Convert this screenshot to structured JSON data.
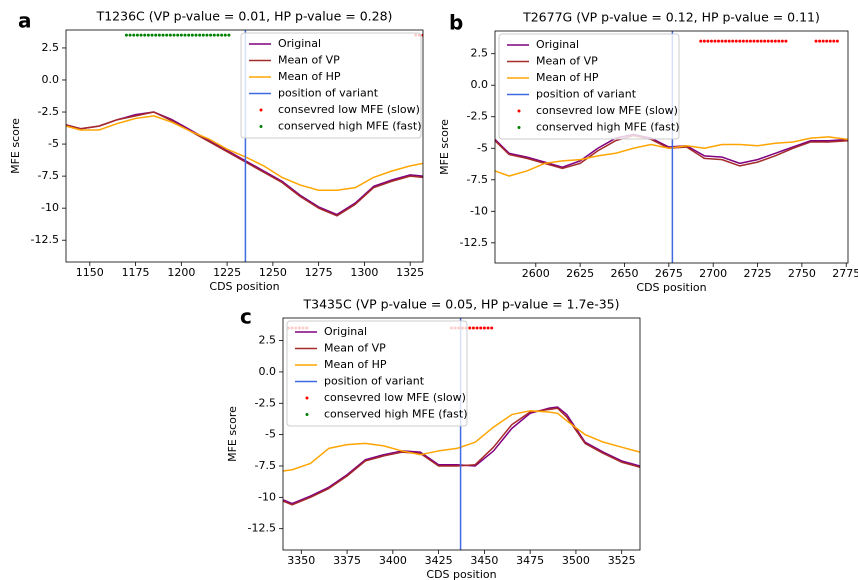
{
  "chart_data": [
    {
      "type": "line",
      "panel_label": "a",
      "title": "T1236C (VP p-value = 0.01, HP p-value = 0.28)",
      "xlabel": "CDS position",
      "ylabel": "MFE score",
      "legend": "upper right",
      "xlim": [
        1137,
        1332
      ],
      "xticks": [
        1150,
        1175,
        1200,
        1225,
        1250,
        1275,
        1300,
        1325
      ],
      "ylim": [
        -14.2,
        3.9
      ],
      "yticks": [
        -12.5,
        -10,
        -7.5,
        -5,
        -2.5,
        {
          "value": 0,
          "label": "0.0"
        },
        2.5
      ],
      "x": [
        1137,
        1145,
        1155,
        1165,
        1175,
        1185,
        1195,
        1205,
        1215,
        1225,
        1235,
        1245,
        1255,
        1265,
        1275,
        1285,
        1295,
        1305,
        1315,
        1325,
        1332
      ],
      "series": [
        {
          "name": "Original",
          "type": "line",
          "color": "#800080",
          "values": [
            -3.5,
            -3.8,
            -3.6,
            -3.1,
            -2.7,
            -2.5,
            -3.1,
            -3.9,
            -4.7,
            -5.5,
            -6.3,
            -7.1,
            -7.9,
            -9.0,
            -9.9,
            -10.5,
            -9.6,
            -8.3,
            -7.8,
            -7.4,
            -7.5
          ]
        },
        {
          "name": "Mean of VP",
          "type": "line",
          "color": "#a52a2a",
          "values": [
            -3.5,
            -3.8,
            -3.6,
            -3.1,
            -2.8,
            -2.5,
            -3.2,
            -4.0,
            -4.8,
            -5.6,
            -6.4,
            -7.2,
            -8.0,
            -9.1,
            -10.0,
            -10.6,
            -9.7,
            -8.4,
            -7.9,
            -7.5,
            -7.6
          ]
        },
        {
          "name": "Mean of HP",
          "type": "line",
          "color": "#ffa500",
          "values": [
            -3.6,
            -3.9,
            -3.9,
            -3.4,
            -3.0,
            -2.8,
            -3.3,
            -4.0,
            -4.6,
            -5.4,
            -6.0,
            -6.7,
            -7.6,
            -8.2,
            -8.6,
            -8.6,
            -8.4,
            -7.6,
            -7.1,
            -6.7,
            -6.5
          ]
        },
        {
          "name": "position of variant",
          "type": "line",
          "color": "#4169e1",
          "x": [
            1235,
            1235
          ],
          "values": [
            -14.2,
            3.9
          ]
        },
        {
          "name": "consevred low MFE (slow)",
          "type": "scatter",
          "color": "#ff0000",
          "x": [
            1328,
            1330,
            1332
          ],
          "values": [
            3.5,
            3.5,
            3.5
          ]
        },
        {
          "name": "conserved high MFE (fast)",
          "type": "scatter",
          "color": "#008000",
          "x": [
            1170,
            1172,
            1174,
            1176,
            1178,
            1180,
            1182,
            1184,
            1186,
            1188,
            1190,
            1192,
            1194,
            1196,
            1198,
            1200,
            1202,
            1204,
            1206,
            1208,
            1210,
            1212,
            1214,
            1216,
            1218,
            1220,
            1222,
            1224,
            1226
          ],
          "values": [
            3.5,
            3.5,
            3.5,
            3.5,
            3.5,
            3.5,
            3.5,
            3.5,
            3.5,
            3.5,
            3.5,
            3.5,
            3.5,
            3.5,
            3.5,
            3.5,
            3.5,
            3.5,
            3.5,
            3.5,
            3.5,
            3.5,
            3.5,
            3.5,
            3.5,
            3.5,
            3.5,
            3.5,
            3.5
          ]
        }
      ]
    },
    {
      "type": "line",
      "panel_label": "b",
      "title": "T2677G (VP p-value = 0.12, HP p-value = 0.11)",
      "xlabel": "CDS position",
      "ylabel": "MFE score",
      "legend": "upper left",
      "xlim": [
        2577,
        2776
      ],
      "xticks": [
        2600,
        2625,
        2650,
        2675,
        2700,
        2725,
        2750,
        2775
      ],
      "ylim": [
        -14.1,
        4.3
      ],
      "yticks": [
        -12.5,
        -10,
        -7.5,
        -5,
        -2.5,
        {
          "value": 0,
          "label": "0.0"
        },
        2.5
      ],
      "x": [
        2577,
        2585,
        2595,
        2605,
        2615,
        2625,
        2635,
        2645,
        2655,
        2665,
        2675,
        2685,
        2695,
        2705,
        2715,
        2725,
        2735,
        2745,
        2755,
        2765,
        2776
      ],
      "series": [
        {
          "name": "Original",
          "type": "line",
          "color": "#800080",
          "values": [
            -4.3,
            -5.4,
            -5.7,
            -6.1,
            -6.5,
            -6.0,
            -5.0,
            -4.2,
            -3.9,
            -4.2,
            -4.9,
            -4.8,
            -5.6,
            -5.7,
            -6.2,
            -5.9,
            -5.4,
            -4.9,
            -4.4,
            -4.4,
            -4.3
          ]
        },
        {
          "name": "Mean of VP",
          "type": "line",
          "color": "#a52a2a",
          "values": [
            -4.4,
            -5.5,
            -5.8,
            -6.2,
            -6.6,
            -6.2,
            -5.2,
            -4.4,
            -4.0,
            -4.3,
            -5.0,
            -4.9,
            -5.8,
            -5.9,
            -6.4,
            -6.1,
            -5.6,
            -5.0,
            -4.5,
            -4.5,
            -4.4
          ]
        },
        {
          "name": "Mean of HP",
          "type": "line",
          "color": "#ffa500",
          "values": [
            -6.8,
            -7.2,
            -6.8,
            -6.2,
            -6.0,
            -5.9,
            -5.6,
            -5.4,
            -5.0,
            -4.7,
            -5.0,
            -4.8,
            -5.0,
            -4.7,
            -4.7,
            -4.8,
            -4.6,
            -4.5,
            -4.2,
            -4.1,
            -4.3
          ]
        },
        {
          "name": "position of variant",
          "type": "line",
          "color": "#4169e1",
          "x": [
            2677,
            2677
          ],
          "values": [
            -14.1,
            4.3
          ]
        },
        {
          "name": "consevred low MFE (slow)",
          "type": "scatter",
          "color": "#ff0000",
          "x": [
            2693,
            2695,
            2697,
            2699,
            2701,
            2703,
            2705,
            2707,
            2709,
            2711,
            2713,
            2715,
            2717,
            2719,
            2721,
            2723,
            2725,
            2727,
            2729,
            2731,
            2733,
            2735,
            2737,
            2739,
            2741,
            2758,
            2760,
            2762,
            2764,
            2766,
            2768,
            2770
          ],
          "values": [
            3.5,
            3.5,
            3.5,
            3.5,
            3.5,
            3.5,
            3.5,
            3.5,
            3.5,
            3.5,
            3.5,
            3.5,
            3.5,
            3.5,
            3.5,
            3.5,
            3.5,
            3.5,
            3.5,
            3.5,
            3.5,
            3.5,
            3.5,
            3.5,
            3.5,
            3.5,
            3.5,
            3.5,
            3.5,
            3.5,
            3.5,
            3.5
          ]
        },
        {
          "name": "conserved high MFE (fast)",
          "type": "scatter",
          "color": "#008000",
          "x": [],
          "values": []
        }
      ]
    },
    {
      "type": "line",
      "panel_label": "c",
      "title": "T3435C (VP p-value = 0.05, HP p-value = 1.7e-35)",
      "xlabel": "CDS position",
      "ylabel": "MFE score",
      "legend": "upper left",
      "xlim": [
        3340,
        3535
      ],
      "xticks": [
        3350,
        3375,
        3400,
        3425,
        3450,
        3475,
        3500,
        3525
      ],
      "ylim": [
        -14.2,
        4.3
      ],
      "yticks": [
        -12.5,
        -10,
        -7.5,
        -5,
        -2.5,
        {
          "value": 0,
          "label": "0.0"
        },
        2.5
      ],
      "x": [
        3340,
        3345,
        3355,
        3365,
        3375,
        3385,
        3395,
        3405,
        3415,
        3425,
        3435,
        3445,
        3455,
        3465,
        3475,
        3485,
        3490,
        3495,
        3505,
        3515,
        3525,
        3535
      ],
      "series": [
        {
          "name": "Original",
          "type": "line",
          "color": "#800080",
          "values": [
            -10.2,
            -10.5,
            -9.9,
            -9.2,
            -8.2,
            -7.0,
            -6.6,
            -6.3,
            -6.4,
            -7.4,
            -7.4,
            -7.5,
            -6.3,
            -4.5,
            -3.3,
            -2.9,
            -2.8,
            -3.4,
            -5.6,
            -6.4,
            -7.1,
            -7.5
          ]
        },
        {
          "name": "Mean of VP",
          "type": "line",
          "color": "#a52a2a",
          "values": [
            -10.3,
            -10.6,
            -10.0,
            -9.3,
            -8.3,
            -7.1,
            -6.7,
            -6.4,
            -6.5,
            -7.5,
            -7.5,
            -7.4,
            -6.0,
            -4.2,
            -3.2,
            -3.0,
            -2.9,
            -3.6,
            -5.7,
            -6.5,
            -7.2,
            -7.6
          ]
        },
        {
          "name": "Mean of HP",
          "type": "line",
          "color": "#ffa500",
          "values": [
            -7.9,
            -7.8,
            -7.3,
            -6.1,
            -5.8,
            -5.7,
            -5.9,
            -6.3,
            -6.6,
            -6.3,
            -6.1,
            -5.6,
            -4.4,
            -3.4,
            -3.1,
            -3.2,
            -3.3,
            -3.9,
            -5.0,
            -5.6,
            -6.0,
            -6.4
          ]
        },
        {
          "name": "position of variant",
          "type": "line",
          "color": "#4169e1",
          "x": [
            3437,
            3437
          ],
          "values": [
            -14.2,
            4.3
          ]
        },
        {
          "name": "consevred low MFE (slow)",
          "type": "scatter",
          "color": "#ff0000",
          "x": [
            3343,
            3345,
            3347,
            3349,
            3351,
            3353,
            3432,
            3434,
            3436,
            3438,
            3440,
            3442,
            3444,
            3446,
            3448,
            3450,
            3452,
            3454
          ],
          "values": [
            3.5,
            3.5,
            3.5,
            3.5,
            3.5,
            3.5,
            3.5,
            3.5,
            3.5,
            3.5,
            3.5,
            3.5,
            3.5,
            3.5,
            3.5,
            3.5,
            3.5,
            3.5
          ]
        },
        {
          "name": "conserved high MFE (fast)",
          "type": "scatter",
          "color": "#008000",
          "x": [],
          "values": []
        }
      ]
    }
  ]
}
